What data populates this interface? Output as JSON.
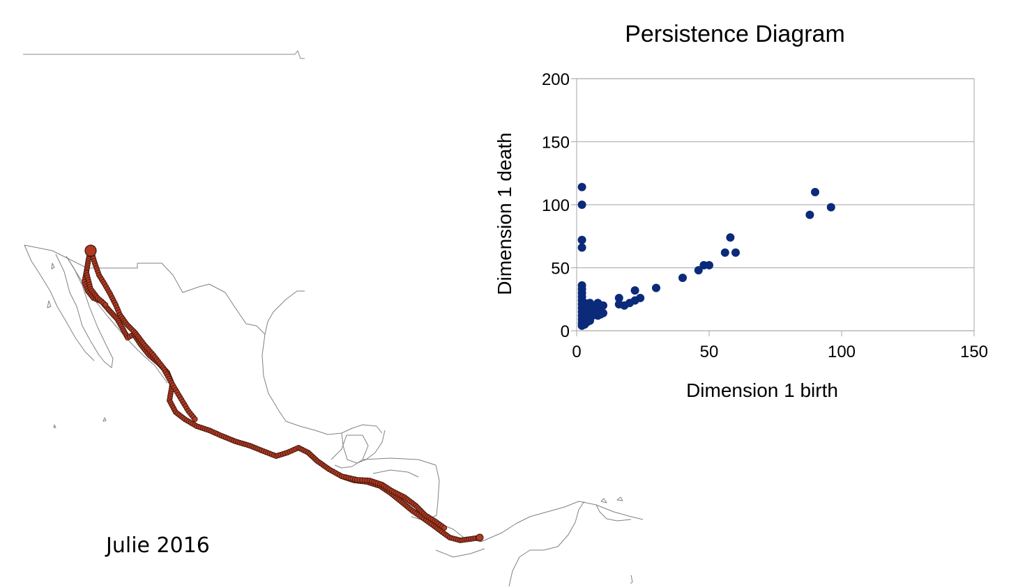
{
  "map": {
    "caption": "Julie 2016",
    "track_color": "#b03a22",
    "track_outline": "#3a140c",
    "border_color": "#777777"
  },
  "chart_data": {
    "type": "scatter",
    "title": "Persistence Diagram",
    "xlabel": "Dimension 1 birth",
    "ylabel": "Dimension 1 death",
    "xlim": [
      0,
      150
    ],
    "ylim": [
      0,
      200
    ],
    "xticks": [
      0,
      50,
      100,
      150
    ],
    "yticks": [
      0,
      50,
      100,
      150,
      200
    ],
    "grid": "horizontal",
    "color": "#0b2a7a",
    "points": [
      [
        2,
        114
      ],
      [
        2,
        100
      ],
      [
        2,
        72
      ],
      [
        2,
        66
      ],
      [
        2,
        36
      ],
      [
        2,
        33
      ],
      [
        2,
        30
      ],
      [
        2,
        27
      ],
      [
        2,
        24
      ],
      [
        2,
        21
      ],
      [
        2,
        18
      ],
      [
        2,
        15
      ],
      [
        2,
        12
      ],
      [
        2,
        9
      ],
      [
        2,
        6
      ],
      [
        2,
        4
      ],
      [
        3,
        22
      ],
      [
        3,
        17
      ],
      [
        3,
        12
      ],
      [
        3,
        8
      ],
      [
        3,
        5
      ],
      [
        4,
        20
      ],
      [
        4,
        15
      ],
      [
        4,
        10
      ],
      [
        4,
        7
      ],
      [
        5,
        22
      ],
      [
        5,
        18
      ],
      [
        5,
        14
      ],
      [
        5,
        10
      ],
      [
        5,
        8
      ],
      [
        6,
        19
      ],
      [
        6,
        15
      ],
      [
        6,
        12
      ],
      [
        7,
        17
      ],
      [
        7,
        13
      ],
      [
        8,
        22
      ],
      [
        8,
        16
      ],
      [
        8,
        12
      ],
      [
        9,
        18
      ],
      [
        9,
        13
      ],
      [
        10,
        20
      ],
      [
        10,
        14
      ],
      [
        16,
        26
      ],
      [
        16,
        21
      ],
      [
        18,
        20
      ],
      [
        20,
        22
      ],
      [
        22,
        24
      ],
      [
        22,
        32
      ],
      [
        24,
        26
      ],
      [
        30,
        34
      ],
      [
        40,
        42
      ],
      [
        46,
        48
      ],
      [
        48,
        52
      ],
      [
        50,
        52
      ],
      [
        56,
        62
      ],
      [
        58,
        74
      ],
      [
        60,
        62
      ],
      [
        88,
        92
      ],
      [
        90,
        110
      ],
      [
        96,
        98
      ]
    ]
  }
}
